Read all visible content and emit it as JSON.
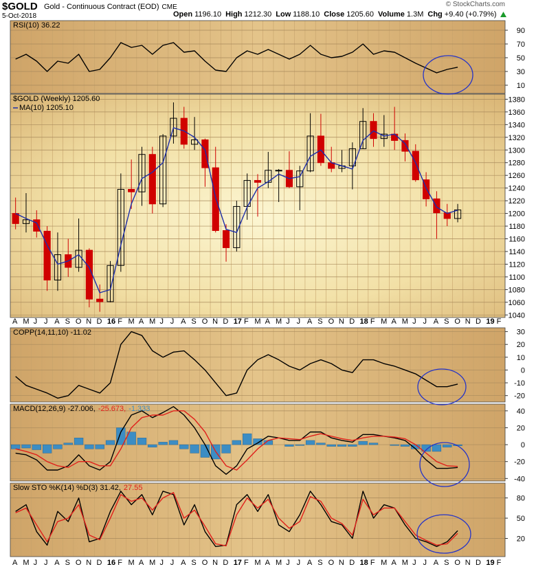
{
  "chart_data": {
    "type": "stock",
    "title": "$GOLD",
    "subtitle": "Gold - Continuous Contract (EOD)",
    "exchange": "CME",
    "date": "5-Oct-2018",
    "copyright": "© StockCharts.com",
    "quote": [
      {
        "label": "Open",
        "value": "1196.10"
      },
      {
        "label": "High",
        "value": "1212.30"
      },
      {
        "label": "Low",
        "value": "1188.10"
      },
      {
        "label": "Close",
        "value": "1205.60"
      },
      {
        "label": "Volume",
        "value": "1.3M"
      },
      {
        "label": "Chg",
        "value": "+9.40 (+0.79%)"
      }
    ],
    "categories": [
      "A",
      "M",
      "J",
      "J",
      "A",
      "S",
      "O",
      "N",
      "D",
      "16",
      "F",
      "M",
      "A",
      "M",
      "J",
      "J",
      "A",
      "S",
      "O",
      "N",
      "D",
      "17",
      "F",
      "M",
      "A",
      "M",
      "J",
      "J",
      "A",
      "S",
      "O",
      "N",
      "D",
      "18",
      "F",
      "M",
      "A",
      "M",
      "J",
      "J",
      "A",
      "S",
      "O",
      "N",
      "D",
      "19",
      "F"
    ],
    "grid": true,
    "panels": [
      {
        "type": "line",
        "label": [
          {
            "text": "RSI(10) 36.22",
            "color": "#000000"
          }
        ],
        "ylim": [
          -2,
          104
        ],
        "yticks": [
          10,
          30,
          50,
          70,
          90
        ],
        "series": [
          {
            "color": "#000000",
            "values": [
              48,
              55,
              45,
              30,
              45,
              42,
              55,
              30,
              33,
              50,
              72,
              65,
              68,
              55,
              68,
              72,
              58,
              60,
              45,
              32,
              30,
              50,
              60,
              55,
              62,
              55,
              48,
              55,
              68,
              55,
              50,
              52,
              58,
              70,
              55,
              60,
              58,
              50,
              42,
              35,
              28,
              33,
              36.22,
              null,
              null,
              null,
              null
            ]
          }
        ]
      },
      {
        "type": "candlestick",
        "label": [
          {
            "text": "$GOLD (Weekly) 1205.60",
            "color": "#000000"
          }
        ],
        "ylim": [
          1036,
          1388
        ],
        "yticks": [
          1040,
          1060,
          1080,
          1100,
          1120,
          1140,
          1160,
          1180,
          1200,
          1220,
          1240,
          1260,
          1280,
          1300,
          1320,
          1340,
          1360,
          1380
        ],
        "up_color": "#000000",
        "down_color": "#d00000",
        "open": [
          1200,
          1184,
          1190,
          1172,
          1095,
          1135,
          1115,
          1142,
          1065,
          1061,
          1118,
          1238,
          1234,
          1293,
          1215,
          1322,
          1350,
          1309,
          1316,
          1272,
          1173,
          1146,
          1211,
          1252,
          1249,
          1268,
          1268,
          1242,
          1267,
          1322,
          1280,
          1271,
          1275,
          1302,
          1345,
          1318,
          1325,
          1315,
          1298,
          1253,
          1223,
          1201,
          1192,
          null,
          null,
          null,
          null
        ],
        "high": [
          1225,
          1232,
          1205,
          1180,
          1170,
          1160,
          1192,
          1145,
          1088,
          1125,
          1263,
          1285,
          1305,
          1305,
          1325,
          1375,
          1368,
          1352,
          1318,
          1305,
          1183,
          1220,
          1263,
          1262,
          1297,
          1270,
          1298,
          1275,
          1358,
          1357,
          1305,
          1300,
          1312,
          1366,
          1358,
          1355,
          1368,
          1326,
          1309,
          1265,
          1235,
          1215,
          1215,
          null,
          null,
          null,
          null
        ],
        "low": [
          1175,
          1170,
          1162,
          1078,
          1078,
          1100,
          1108,
          1052,
          1045,
          1060,
          1108,
          1207,
          1212,
          1200,
          1210,
          1310,
          1302,
          1300,
          1242,
          1170,
          1124,
          1140,
          1190,
          1195,
          1240,
          1218,
          1240,
          1205,
          1265,
          1275,
          1265,
          1265,
          1238,
          1302,
          1305,
          1305,
          1300,
          1282,
          1250,
          1211,
          1160,
          1180,
          1186,
          null,
          null,
          null,
          null
        ],
        "close": [
          1184,
          1190,
          1172,
          1095,
          1135,
          1115,
          1142,
          1065,
          1061,
          1118,
          1238,
          1234,
          1293,
          1215,
          1322,
          1350,
          1309,
          1316,
          1272,
          1173,
          1146,
          1211,
          1252,
          1249,
          1268,
          1268,
          1242,
          1267,
          1322,
          1280,
          1271,
          1275,
          1302,
          1345,
          1318,
          1325,
          1315,
          1298,
          1253,
          1223,
          1201,
          1192,
          1205.6,
          null,
          null,
          null,
          null
        ],
        "overlay": {
          "label": "MA(10) 1205.10",
          "color": "#1d2ea8",
          "values": [
            1200,
            1192,
            1185,
            1150,
            1120,
            1125,
            1135,
            1115,
            1075,
            1080,
            1150,
            1215,
            1255,
            1265,
            1280,
            1335,
            1330,
            1320,
            1300,
            1225,
            1175,
            1170,
            1210,
            1240,
            1250,
            1262,
            1255,
            1258,
            1290,
            1300,
            1280,
            1275,
            1270,
            1315,
            1330,
            1322,
            1325,
            1310,
            1280,
            1240,
            1210,
            1200,
            1205.1,
            null,
            null,
            null,
            null
          ]
        }
      },
      {
        "type": "line",
        "label": [
          {
            "text": "COPP(14,11,10) -11.02",
            "color": "#000000"
          }
        ],
        "ylim": [
          -25,
          33
        ],
        "yticks": [
          -20,
          -10,
          0,
          10,
          20,
          30
        ],
        "series": [
          {
            "color": "#000000",
            "values": [
              -5,
              -12,
              -15,
              -18,
              -22,
              -20,
              -12,
              -15,
              -18,
              -10,
              20,
              30,
              27,
              15,
              10,
              14,
              15,
              8,
              0,
              -10,
              -20,
              -18,
              0,
              8,
              12,
              8,
              3,
              0,
              5,
              8,
              5,
              0,
              -2,
              8,
              8,
              5,
              3,
              0,
              -3,
              -8,
              -13,
              -13,
              -11.02,
              null,
              null,
              null,
              null
            ]
          }
        ]
      },
      {
        "type": "line",
        "label": [
          {
            "text": "MACD(12,26,9) -27.006,",
            "color": "#000000"
          },
          {
            "text": "-25.673,",
            "color": "#e0201b"
          },
          {
            "text": "-1.333",
            "color": "#3c8dc4"
          }
        ],
        "ylim": [
          -43,
          48
        ],
        "yticks": [
          -40,
          -20,
          0,
          20,
          40
        ],
        "series": [
          {
            "type": "bar",
            "color": "#3c8dc4",
            "values": [
              -5,
              -4,
              -6,
              -10,
              -5,
              2,
              8,
              -5,
              -5,
              5,
              20,
              15,
              8,
              -3,
              3,
              5,
              -5,
              -10,
              -15,
              -17,
              -10,
              5,
              13,
              7,
              5,
              0,
              -2,
              -1,
              5,
              2,
              -2,
              -2,
              -2,
              4,
              2,
              0,
              -1,
              -2,
              -5,
              -8,
              -8,
              -3,
              -1.333,
              null,
              null,
              null,
              null
            ]
          },
          {
            "type": "line",
            "color": "#000000",
            "values": [
              -10,
              -12,
              -18,
              -30,
              -30,
              -25,
              -12,
              -25,
              -30,
              -20,
              15,
              35,
              40,
              32,
              38,
              45,
              35,
              20,
              0,
              -25,
              -35,
              -25,
              -5,
              2,
              10,
              8,
              5,
              5,
              15,
              15,
              8,
              5,
              3,
              12,
              12,
              10,
              8,
              5,
              -5,
              -18,
              -28,
              -28,
              -27.006,
              null,
              null,
              null,
              null
            ]
          },
          {
            "type": "line",
            "color": "#e0201b",
            "values": [
              -5,
              -8,
              -12,
              -20,
              -25,
              -27,
              -20,
              -20,
              -25,
              -25,
              -5,
              20,
              32,
              35,
              35,
              40,
              40,
              30,
              15,
              -8,
              -25,
              -30,
              -18,
              -5,
              5,
              8,
              7,
              6,
              10,
              13,
              10,
              7,
              5,
              8,
              10,
              10,
              9,
              7,
              0,
              -10,
              -20,
              -25,
              -25.673,
              null,
              null,
              null,
              null
            ]
          }
        ]
      },
      {
        "type": "line",
        "label": [
          {
            "text": "Slow STO %K(14) %D(3) 31.42,",
            "color": "#000000"
          },
          {
            "text": "27.55",
            "color": "#e0201b"
          }
        ],
        "ylim": [
          -7,
          102
        ],
        "yticks": [
          20,
          50,
          80
        ],
        "series": [
          {
            "color": "#000000",
            "values": [
              60,
              70,
              30,
              10,
              60,
              45,
              80,
              15,
              20,
              60,
              90,
              70,
              85,
              55,
              90,
              85,
              40,
              70,
              30,
              8,
              10,
              70,
              85,
              60,
              85,
              40,
              30,
              55,
              90,
              70,
              45,
              40,
              20,
              90,
              50,
              70,
              65,
              40,
              20,
              15,
              8,
              15,
              31.42,
              null,
              null,
              null,
              null
            ]
          },
          {
            "color": "#e0201b",
            "values": [
              58,
              65,
              40,
              15,
              45,
              50,
              70,
              25,
              18,
              50,
              85,
              75,
              80,
              62,
              80,
              88,
              50,
              62,
              38,
              12,
              9,
              55,
              80,
              65,
              78,
              50,
              35,
              45,
              82,
              75,
              50,
              42,
              25,
              78,
              55,
              65,
              65,
              45,
              25,
              17,
              10,
              12,
              27.55,
              null,
              null,
              null,
              null
            ]
          }
        ]
      }
    ]
  }
}
